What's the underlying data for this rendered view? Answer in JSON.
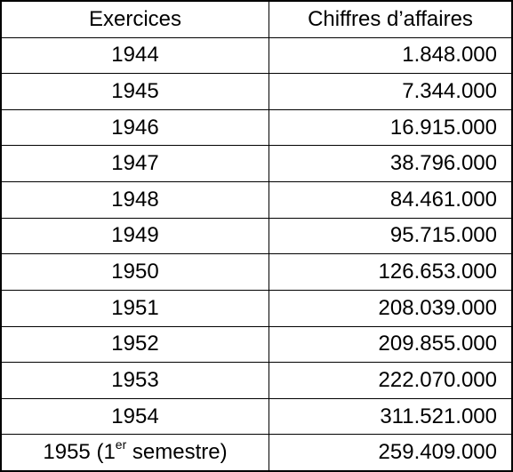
{
  "table": {
    "header": [
      "Exercices",
      "Chiffres d’affaires"
    ],
    "rows": [
      [
        "1944",
        "1.848.000"
      ],
      [
        "1945",
        "7.344.000"
      ],
      [
        "1946",
        "16.915.000"
      ],
      [
        "1947",
        "38.796.000"
      ],
      [
        "1948",
        "84.461.000"
      ],
      [
        "1949",
        "95.715.000"
      ],
      [
        "1950",
        "126.653.000"
      ],
      [
        "1951",
        "208.039.000"
      ],
      [
        "1952",
        "209.855.000"
      ],
      [
        "1953",
        "222.070.000"
      ],
      [
        "1954",
        "311.521.000"
      ],
      [
        [
          "1955 (1",
          "er",
          " semestre)"
        ],
        "259.409.000"
      ]
    ]
  }
}
